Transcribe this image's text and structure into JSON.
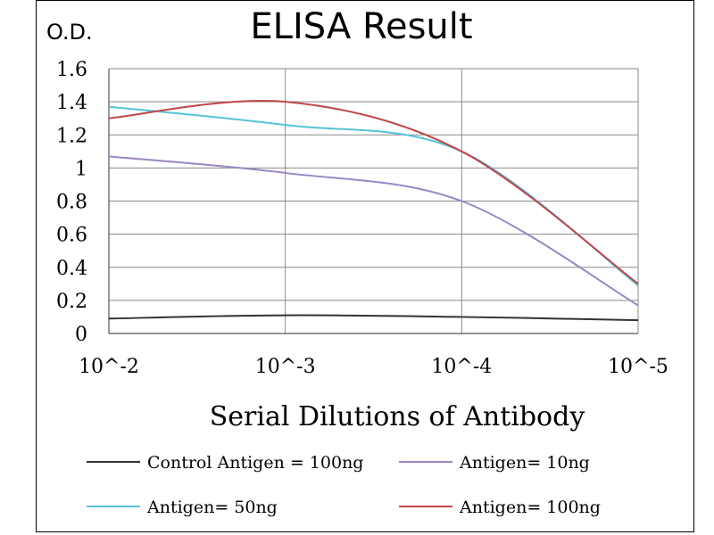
{
  "chart_data": {
    "type": "line",
    "title": "ELISA Result",
    "ylabel": "O.D.",
    "xlabel": "Serial Dilutions  of Antibody",
    "categories": [
      "10^-2",
      "10^-3",
      "10^-4",
      "10^-5"
    ],
    "ylim": [
      0,
      1.6
    ],
    "yticks": [
      "0",
      "0.2",
      "0.4",
      "0.6",
      "0.8",
      "1",
      "1.2",
      "1.4",
      "1.6"
    ],
    "grid": true,
    "series": [
      {
        "name": "Control Antigen = 100ng",
        "color": "#333333",
        "values": [
          0.09,
          0.11,
          0.1,
          0.08
        ]
      },
      {
        "name": "Antigen= 10ng",
        "color": "#9a86c6",
        "values": [
          1.07,
          0.97,
          0.8,
          0.17
        ]
      },
      {
        "name": "Antigen= 50ng",
        "color": "#55c3d6",
        "values": [
          1.37,
          1.26,
          1.1,
          0.29
        ]
      },
      {
        "name": "Antigen= 100ng",
        "color": "#c0474a",
        "values": [
          1.3,
          1.4,
          1.1,
          0.3
        ]
      }
    ]
  }
}
